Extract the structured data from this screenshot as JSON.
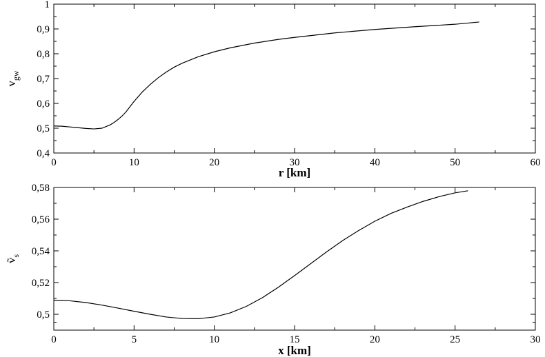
{
  "chart_data": [
    {
      "type": "line",
      "title": "",
      "xlabel": "r [km]",
      "ylabel": "v",
      "ylabel_sub": "gw",
      "xlim": [
        0,
        60
      ],
      "ylim": [
        0.4,
        1.0
      ],
      "xticks": [
        0,
        10,
        20,
        30,
        40,
        50,
        60
      ],
      "yticks": [
        0.4,
        0.5,
        0.6,
        0.7,
        0.8,
        0.9,
        1.0
      ],
      "xtick_labels": [
        "0",
        "10",
        "20",
        "30",
        "40",
        "50",
        "60"
      ],
      "ytick_labels": [
        "0,4",
        "0,5",
        "0,6",
        "0,7",
        "0,8",
        "0,9",
        "1"
      ],
      "grid": false,
      "series": [
        {
          "x": [
            0,
            1,
            2,
            3,
            4,
            5,
            6,
            7,
            7.5,
            8,
            8.5,
            9,
            10,
            11,
            12,
            13,
            14,
            15,
            16,
            18,
            20,
            22,
            25,
            28,
            30,
            35,
            40,
            45,
            50,
            53
          ],
          "y": [
            0.509,
            0.508,
            0.505,
            0.502,
            0.499,
            0.497,
            0.5,
            0.513,
            0.523,
            0.535,
            0.549,
            0.566,
            0.608,
            0.645,
            0.676,
            0.703,
            0.726,
            0.746,
            0.762,
            0.788,
            0.808,
            0.824,
            0.843,
            0.858,
            0.866,
            0.884,
            0.898,
            0.909,
            0.919,
            0.928
          ]
        }
      ]
    },
    {
      "type": "line",
      "title": "",
      "xlabel": "x [km]",
      "ylabel": "ṽ",
      "ylabel_sub": "s",
      "xlim": [
        0,
        30
      ],
      "ylim": [
        0.49,
        0.58
      ],
      "xticks": [
        0,
        5,
        10,
        15,
        20,
        25,
        30
      ],
      "yticks": [
        0.5,
        0.52,
        0.54,
        0.56,
        0.58
      ],
      "xtick_labels": [
        "0",
        "5",
        "10",
        "15",
        "20",
        "25",
        "30"
      ],
      "ytick_labels": [
        "0,5",
        "0,52",
        "0,54",
        "0,56",
        "0,58"
      ],
      "grid": false,
      "series": [
        {
          "x": [
            0,
            1,
            2,
            3,
            4,
            5,
            6,
            7,
            8,
            9,
            10,
            11,
            12,
            13,
            14,
            15,
            16,
            17,
            18,
            19,
            20,
            21,
            22,
            23,
            24,
            25,
            25.8
          ],
          "y": [
            0.5089,
            0.5085,
            0.5074,
            0.5058,
            0.5039,
            0.5019,
            0.5,
            0.4983,
            0.4973,
            0.4972,
            0.4983,
            0.5009,
            0.505,
            0.5105,
            0.5171,
            0.5244,
            0.5319,
            0.5394,
            0.5465,
            0.5529,
            0.5587,
            0.5636,
            0.5676,
            0.5712,
            0.5742,
            0.5766,
            0.5779
          ]
        }
      ]
    }
  ]
}
